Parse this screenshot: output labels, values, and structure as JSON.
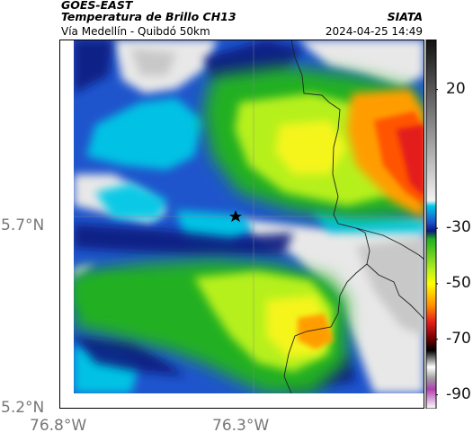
{
  "header": {
    "satellite": "GOES-EAST",
    "product": "Temperatura de Brillo CH13",
    "region": "Vía Medellín - Quibdó 50km",
    "brand": "SIATA",
    "timestamp": "2024-04-25 14:49"
  },
  "axes": {
    "y_ticks": [
      {
        "label": "5.7°N",
        "value": 5.7
      },
      {
        "label": "5.2°N",
        "value": 5.2
      }
    ],
    "x_ticks": [
      {
        "label": "76.8°W",
        "value": -76.8
      },
      {
        "label": "76.3°W",
        "value": -76.3
      }
    ],
    "lat_range": [
      5.2,
      6.21
    ],
    "lon_range": [
      -76.8,
      -75.8
    ]
  },
  "colorbar": {
    "ticks": [
      {
        "label": "20",
        "value": 20
      },
      {
        "label": "-30",
        "value": -30
      },
      {
        "label": "-50",
        "value": -50
      },
      {
        "label": "-70",
        "value": -70
      },
      {
        "label": "-90",
        "value": -90
      }
    ],
    "range": [
      -95,
      38
    ],
    "colors": {
      "warm_top": "#111111",
      "warm_bottom": "#f2f2f2",
      "cyan": "#00c8e6",
      "blue": "#1e4fc8",
      "navy": "#0a1a7a",
      "green": "#22b022",
      "lime": "#b6f01e",
      "yellow": "#ffff00",
      "orange": "#ff8c00",
      "red": "#e31a1c",
      "darkred": "#6b0000",
      "magenta": "#b040b0"
    }
  },
  "map": {
    "marker_icon": "star-marker-icon",
    "marker_lonlat": [
      -76.35,
      5.7
    ]
  }
}
